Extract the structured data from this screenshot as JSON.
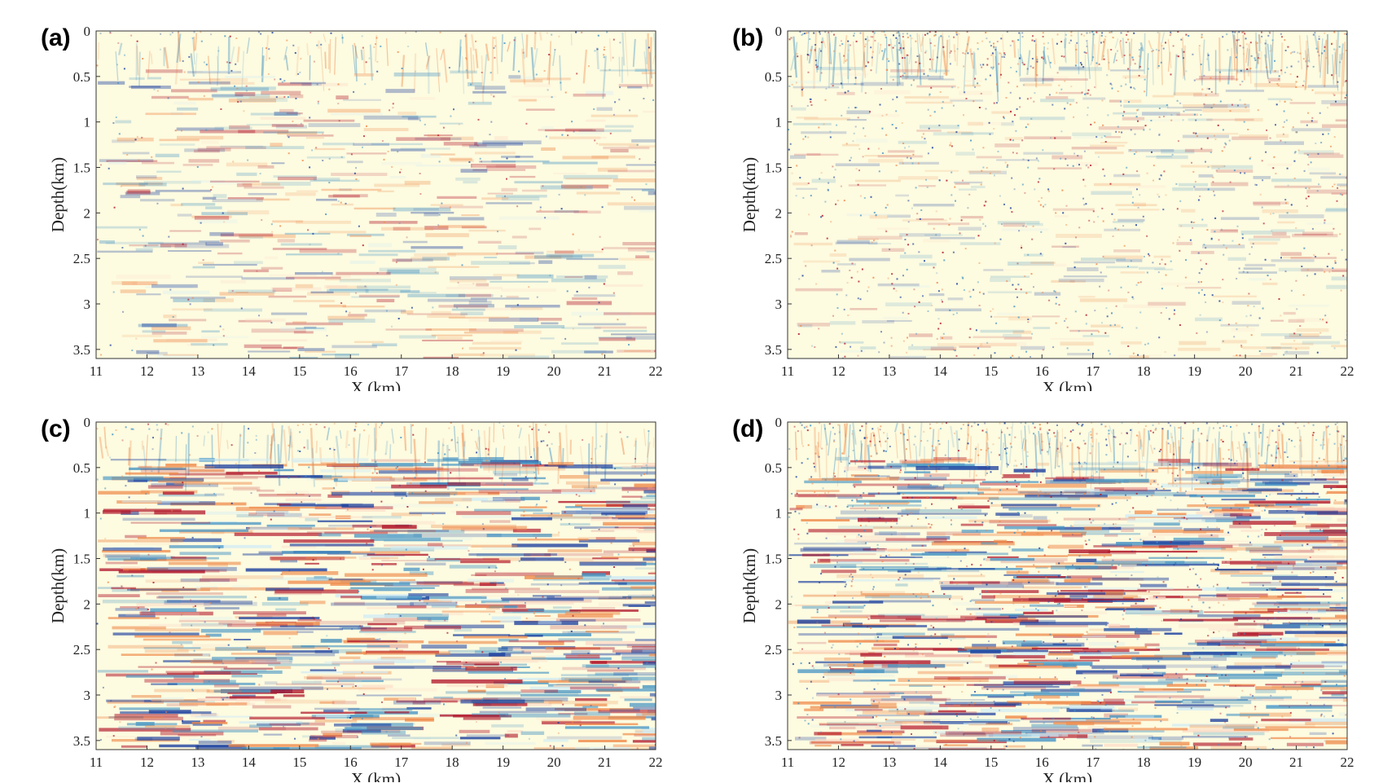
{
  "colors": {
    "background": "#fdfbe0",
    "red": "#b2182b",
    "orange": "#ef8a4a",
    "light_orange": "#fddbc7",
    "light_blue": "#d1ecf5",
    "blue": "#4393c3",
    "dark_blue": "#1b3f9e",
    "axis": "#333333"
  },
  "chart_data": [
    {
      "type": "heatmap",
      "panel_label": "(a)",
      "title": "",
      "xlabel": "X (km)",
      "ylabel": "Depth(km)",
      "xlim": [
        11,
        22
      ],
      "ylim": [
        3.6,
        0
      ],
      "x_ticks": [
        "11",
        "12",
        "13",
        "14",
        "15",
        "16",
        "17",
        "18",
        "19",
        "20",
        "21",
        "22"
      ],
      "y_ticks": [
        "0",
        "0.5",
        "1",
        "1.5",
        "2",
        "2.5",
        "3",
        "3.5"
      ],
      "amplitude_level": 0.35,
      "noise_level": 0.15
    },
    {
      "type": "heatmap",
      "panel_label": "(b)",
      "title": "",
      "xlabel": "X (km)",
      "ylabel": "Depth(km)",
      "xlim": [
        11,
        22
      ],
      "ylim": [
        3.6,
        0
      ],
      "x_ticks": [
        "11",
        "12",
        "13",
        "14",
        "15",
        "16",
        "17",
        "18",
        "19",
        "20",
        "21",
        "22"
      ],
      "y_ticks": [
        "0",
        "0.5",
        "1",
        "1.5",
        "2",
        "2.5",
        "3",
        "3.5"
      ],
      "amplitude_level": 0.12,
      "noise_level": 0.55
    },
    {
      "type": "heatmap",
      "panel_label": "(c)",
      "title": "",
      "xlabel": "X (km)",
      "ylabel": "Depth(km)",
      "xlim": [
        11,
        22
      ],
      "ylim": [
        3.6,
        0
      ],
      "x_ticks": [
        "11",
        "12",
        "13",
        "14",
        "15",
        "16",
        "17",
        "18",
        "19",
        "20",
        "21",
        "22"
      ],
      "y_ticks": [
        "0",
        "0.5",
        "1",
        "1.5",
        "2",
        "2.5",
        "3",
        "3.5"
      ],
      "amplitude_level": 0.9,
      "noise_level": 0.15
    },
    {
      "type": "heatmap",
      "panel_label": "(d)",
      "title": "",
      "xlabel": "X (km)",
      "ylabel": "Depth(km)",
      "xlim": [
        11,
        22
      ],
      "ylim": [
        3.6,
        0
      ],
      "x_ticks": [
        "11",
        "12",
        "13",
        "14",
        "15",
        "16",
        "17",
        "18",
        "19",
        "20",
        "21",
        "22"
      ],
      "y_ticks": [
        "0",
        "0.5",
        "1",
        "1.5",
        "2",
        "2.5",
        "3",
        "3.5"
      ],
      "amplitude_level": 0.9,
      "noise_level": 0.45
    }
  ]
}
